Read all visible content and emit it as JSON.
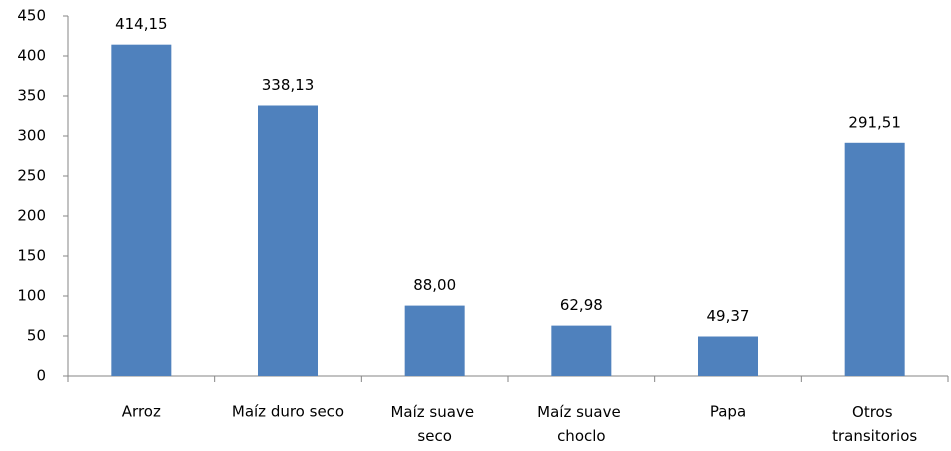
{
  "chart_data": {
    "type": "bar",
    "categories": [
      "Arroz",
      "Maíz duro seco",
      "Maíz suave\nseco",
      "Maíz suave\nchoclo",
      "Papa",
      "Otros\ntransitorios"
    ],
    "values": [
      414.15,
      338.13,
      88.0,
      62.98,
      49.37,
      291.51
    ],
    "value_labels": [
      "414,15",
      "338,13",
      "88,00",
      "62,98",
      "49,37",
      "291,51"
    ],
    "color": "#4f81bd",
    "ylim": [
      0,
      450
    ],
    "yticks": [
      0,
      50,
      100,
      150,
      200,
      250,
      300,
      350,
      400,
      450
    ],
    "grid": false
  }
}
